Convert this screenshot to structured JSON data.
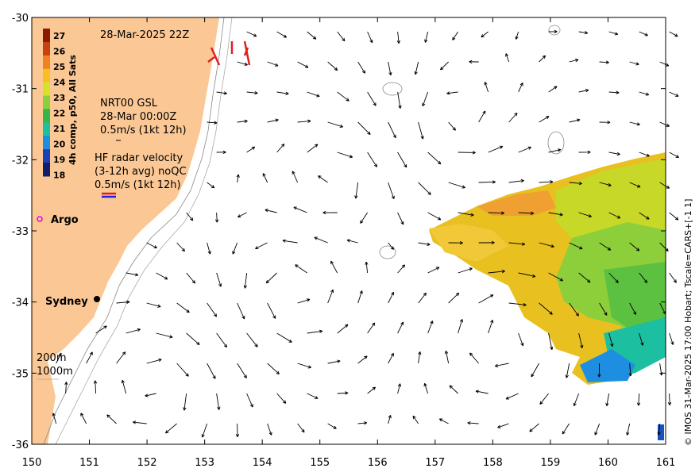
{
  "map": {
    "date_label": "28-Mar-2025 22Z",
    "sst_colorbar": {
      "label": "4h comp, p50, All Sats",
      "ticks": [
        "27",
        "26",
        "25",
        "24",
        "23",
        "22",
        "21",
        "20",
        "19",
        "18"
      ],
      "colors": [
        "#8b1a00",
        "#c84010",
        "#f08020",
        "#f5c020",
        "#d6e22a",
        "#8ccf3a",
        "#35b54a",
        "#1cc0a0",
        "#1e8fe0",
        "#1a40b8",
        "#10206a"
      ]
    },
    "current_legend": {
      "line1": "NRT00 GSL",
      "line2": "28-Mar 00:00Z",
      "line3": "0.5m/s (1kt 12h)"
    },
    "radar_legend": {
      "line1": "HF radar velocity",
      "line2": "(3-12h avg) noQC",
      "line3": "0.5m/s (1kt 12h)"
    },
    "argo_label": "Argo",
    "city_label": "Sydney",
    "isobath_200": "200m",
    "isobath_1000": "1000m",
    "x_ticks": [
      "150",
      "151",
      "152",
      "153",
      "154",
      "155",
      "156",
      "157",
      "158",
      "159",
      "160",
      "161"
    ],
    "y_ticks": [
      "-30",
      "-31",
      "-32",
      "-33",
      "-34",
      "-35",
      "-36"
    ],
    "credit": "© IMOS 31-Mar-2025 17:00 Hobart; Tscale=CARS+[-1 1]",
    "colors": {
      "land": "#fbc895",
      "sea": "#ffffff",
      "argo": "#e000e0",
      "radar": "#e02020"
    }
  }
}
